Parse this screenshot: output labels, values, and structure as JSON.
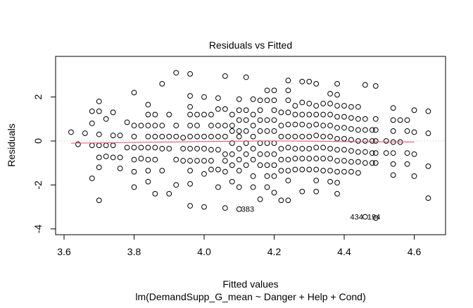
{
  "chart_data": {
    "type": "scatter",
    "title": "Residuals vs Fitted",
    "xlabel": "Fitted values",
    "subtitle": "lm(DemandSupp_G_mean ~ Danger + Help + Cond)",
    "ylabel": "Residuals",
    "xlim": [
      3.575,
      4.66
    ],
    "ylim": [
      -4.2,
      3.8
    ],
    "xticks": [
      3.6,
      3.8,
      4.0,
      4.2,
      4.4,
      4.6
    ],
    "xtick_labels": [
      "3.6",
      "3.8",
      "4.0",
      "4.2",
      "4.4",
      "4.6"
    ],
    "yticks": [
      2,
      0,
      -2,
      -4
    ],
    "ytick_labels": [
      "2",
      "0",
      "-2",
      "-4"
    ],
    "reference_line_y": 0,
    "colors": {
      "points": "#000000",
      "smooth": "#DF536B",
      "reference": "#BEBEBE"
    },
    "smooth": {
      "x": [
        3.62,
        3.7,
        3.8,
        3.9,
        4.0,
        4.1,
        4.2,
        4.3,
        4.4,
        4.5,
        4.6
      ],
      "y": [
        -0.1,
        -0.09,
        -0.07,
        -0.05,
        -0.03,
        -0.01,
        0.0,
        -0.01,
        -0.03,
        -0.04,
        -0.05
      ]
    },
    "columns": [
      {
        "x": 3.62,
        "y": [
          0.4
        ]
      },
      {
        "x": 3.64,
        "y": [
          -0.15
        ]
      },
      {
        "x": 3.66,
        "y": [
          0.35
        ]
      },
      {
        "x": 3.68,
        "y": [
          1.35,
          0.8,
          -0.2,
          -1.7
        ]
      },
      {
        "x": 3.7,
        "y": [
          1.8,
          1.35,
          0.3,
          -0.2,
          -0.75,
          -1.2,
          -2.7
        ]
      },
      {
        "x": 3.72,
        "y": [
          1.0,
          -0.2,
          -0.7
        ]
      },
      {
        "x": 3.74,
        "y": [
          1.3,
          0.25,
          -0.2,
          -0.75
        ]
      },
      {
        "x": 3.76,
        "y": [
          0.25,
          -0.75,
          -1.25
        ]
      },
      {
        "x": 3.78,
        "y": [
          0.85,
          -0.3
        ]
      },
      {
        "x": 3.8,
        "y": [
          2.2,
          0.7,
          0.2,
          -0.3,
          -0.85,
          -1.4,
          -2.1
        ]
      },
      {
        "x": 3.82,
        "y": [
          0.7,
          -0.3,
          -0.8
        ]
      },
      {
        "x": 3.84,
        "y": [
          1.65,
          1.2,
          0.7,
          0.2,
          -0.3,
          -0.85,
          -1.35,
          -1.85
        ]
      },
      {
        "x": 3.86,
        "y": [
          1.2,
          0.7,
          0.2,
          -0.3,
          -0.85,
          -2.4
        ]
      },
      {
        "x": 3.88,
        "y": [
          2.6,
          0.7,
          0.2,
          -0.35,
          -1.35
        ]
      },
      {
        "x": 3.9,
        "y": [
          1.2,
          0.2,
          -0.35,
          -2.4
        ]
      },
      {
        "x": 3.92,
        "y": [
          3.1,
          0.7,
          0.2,
          -0.85,
          -2.0
        ]
      },
      {
        "x": 3.94,
        "y": [
          0.15,
          -0.35,
          -0.9
        ]
      },
      {
        "x": 3.96,
        "y": [
          3.05,
          2.05,
          1.55,
          1.2,
          0.7,
          0.2,
          -0.35,
          -0.9,
          -1.35,
          -1.95,
          -2.95
        ]
      },
      {
        "x": 3.98,
        "y": [
          1.2,
          0.7,
          0.2,
          -0.35,
          -0.9
        ]
      },
      {
        "x": 4.0,
        "y": [
          2.0,
          1.2,
          0.2,
          -0.35,
          -0.9,
          -1.5,
          -3.0
        ]
      },
      {
        "x": 4.02,
        "y": [
          1.2,
          0.7,
          0.2,
          -0.4,
          -0.9,
          -1.3
        ]
      },
      {
        "x": 4.04,
        "y": [
          1.95,
          1.45,
          0.7,
          0.2,
          -0.4,
          -1.3,
          -2.1
        ]
      },
      {
        "x": 4.06,
        "y": [
          2.95,
          1.45,
          0.7,
          0.2,
          -0.6,
          -0.9,
          -1.4,
          -3.05
        ]
      },
      {
        "x": 4.08,
        "y": [
          1.2,
          0.7,
          0.45,
          -0.1,
          -0.6,
          -1.1,
          -1.85
        ]
      },
      {
        "x": 4.1,
        "y": [
          1.9,
          1.4,
          0.95,
          0.45,
          0.2,
          -0.35,
          -0.85,
          -1.35,
          -2.1,
          -3.1
        ]
      },
      {
        "x": 4.12,
        "y": [
          2.9,
          1.4,
          0.95,
          0.45,
          -0.1,
          -0.6,
          -1.1
        ]
      },
      {
        "x": 4.14,
        "y": [
          1.9,
          1.2,
          0.7,
          0.2,
          -0.35,
          -0.85,
          -1.6,
          -2.1
        ]
      },
      {
        "x": 4.16,
        "y": [
          1.85,
          1.4,
          0.95,
          0.45,
          -0.1,
          -0.6,
          -1.1,
          -2.65
        ]
      },
      {
        "x": 4.18,
        "y": [
          2.3,
          1.85,
          0.95,
          0.45,
          -0.1,
          -0.6,
          -1.1,
          -1.6,
          -2.1
        ]
      },
      {
        "x": 4.2,
        "y": [
          2.3,
          1.85,
          1.4,
          0.95,
          0.45,
          -0.1,
          -0.6,
          -1.1,
          -1.6,
          -2.35
        ]
      },
      {
        "x": 4.22,
        "y": [
          1.3,
          0.7,
          0.2,
          -0.35,
          -0.85,
          -1.35,
          -2.7
        ]
      },
      {
        "x": 4.24,
        "y": [
          2.75,
          2.3,
          1.85,
          1.3,
          0.75,
          0.2,
          -0.3,
          -0.85,
          -1.35,
          -1.8,
          -2.7
        ]
      },
      {
        "x": 4.26,
        "y": [
          1.6,
          1.2,
          0.75,
          0.2,
          -0.35,
          -0.8,
          -1.3
        ]
      },
      {
        "x": 4.28,
        "y": [
          2.7,
          1.75,
          1.2,
          0.75,
          0.2,
          -0.35,
          -0.8,
          -1.3,
          -2.3
        ]
      },
      {
        "x": 4.3,
        "y": [
          2.7,
          1.7,
          1.2,
          0.7,
          0.2,
          -0.35,
          -0.8,
          -1.3
        ]
      },
      {
        "x": 4.32,
        "y": [
          2.6,
          1.6,
          1.2,
          0.75,
          0.25,
          -0.3,
          -0.8,
          -1.3,
          -1.8,
          -2.3
        ]
      },
      {
        "x": 4.34,
        "y": [
          1.7,
          1.2,
          0.7,
          0.2,
          -0.3,
          -0.8,
          -1.35
        ]
      },
      {
        "x": 4.36,
        "y": [
          2.15,
          1.7,
          1.2,
          0.7,
          0.2,
          -0.35,
          -0.8,
          -1.35,
          -1.85
        ]
      },
      {
        "x": 4.38,
        "y": [
          2.6,
          2.1,
          1.6,
          1.1,
          0.6,
          0.1,
          -0.4,
          -0.9,
          -1.4,
          -1.9,
          -2.4
        ]
      },
      {
        "x": 4.4,
        "y": [
          1.6,
          1.1,
          0.6,
          0.1,
          -0.4,
          -0.9,
          -1.4
        ]
      },
      {
        "x": 4.42,
        "y": [
          1.55,
          1.05,
          0.55,
          0.05,
          -0.45,
          -0.95,
          -1.4
        ]
      },
      {
        "x": 4.44,
        "y": [
          1.55,
          1.0,
          0.5,
          0.0,
          -0.5,
          -0.95,
          -1.45
        ]
      },
      {
        "x": 4.46,
        "y": [
          2.55,
          1.0,
          0.5,
          0.0,
          -0.5,
          -1.0,
          -3.45
        ]
      },
      {
        "x": 4.48,
        "y": [
          0.5,
          0.0,
          -0.55,
          -1.0
        ]
      },
      {
        "x": 4.49,
        "y": [
          2.5,
          1.0,
          0.5,
          0.0,
          -0.55,
          -1.0,
          -3.5
        ]
      },
      {
        "x": 4.52,
        "y": [
          0.0,
          -0.55
        ]
      },
      {
        "x": 4.54,
        "y": [
          1.5,
          0.95,
          0.45,
          -0.05,
          -0.55,
          -1.05,
          -1.55
        ]
      },
      {
        "x": 4.56,
        "y": [
          0.95,
          -0.05
        ]
      },
      {
        "x": 4.58,
        "y": [
          0.95,
          0.45,
          -0.55,
          -1.05
        ]
      },
      {
        "x": 4.6,
        "y": [
          1.4,
          0.4,
          -0.6,
          -1.6
        ]
      },
      {
        "x": 4.64,
        "y": [
          1.35,
          0.35,
          -1.15,
          -2.6
        ]
      }
    ],
    "annotations": [
      {
        "label": "383",
        "x": 4.1,
        "y": -3.1,
        "side": "right"
      },
      {
        "label": "434",
        "x": 4.46,
        "y": -3.45,
        "side": "left"
      },
      {
        "label": "194",
        "x": 4.46,
        "y": -3.45,
        "side": "right"
      }
    ]
  }
}
